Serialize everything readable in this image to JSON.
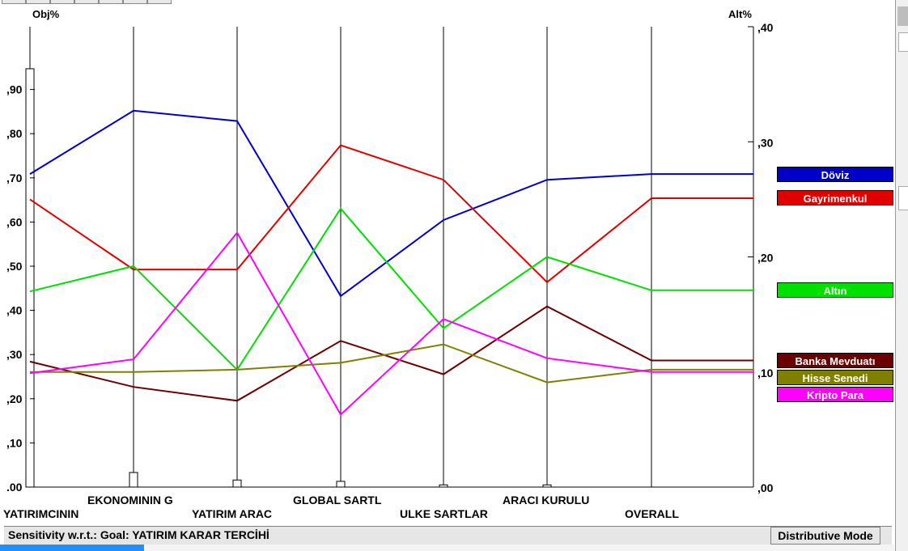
{
  "chart_data": {
    "type": "line",
    "left_axis_label": "Obj%",
    "right_axis_label": "Alt%",
    "left_ticks": [
      ".00",
      ",10",
      ",20",
      ",30",
      ",40",
      ",50",
      ",60",
      ",70",
      ",80",
      ",90"
    ],
    "left_ylim": [
      0,
      1.0
    ],
    "right_ticks": [
      ",00",
      ",10",
      ",20",
      ",30",
      ",40"
    ],
    "right_ylim": [
      0,
      0.4
    ],
    "categories": [
      "YATIRIMCININ",
      "EKONOMININ G",
      "YATIRIM ARAC",
      "GLOBAL SARTL",
      "ULKE SARTLAR",
      "ARACI KURULU",
      "OVERALL"
    ],
    "objective_weights": [
      0.947,
      0.033,
      0.016,
      0.013,
      0.005,
      0.005
    ],
    "series": [
      {
        "name": "Döviz",
        "color": "#0000c8",
        "values": [
          0.272,
          0.327,
          0.318,
          0.166,
          0.232,
          0.267,
          0.272
        ]
      },
      {
        "name": "Gayrimenkul",
        "color": "#e00000",
        "values": [
          0.25,
          0.189,
          0.189,
          0.297,
          0.267,
          0.178,
          0.251
        ]
      },
      {
        "name": "Altın",
        "color": "#00e000",
        "values": [
          0.17,
          0.192,
          0.102,
          0.242,
          0.138,
          0.2,
          0.171
        ]
      },
      {
        "name": "Banka Mevduatı",
        "color": "#6a0000",
        "values": [
          0.109,
          0.087,
          0.075,
          0.127,
          0.098,
          0.157,
          0.11
        ]
      },
      {
        "name": "Hisse Senedi",
        "color": "#808000",
        "values": [
          0.1,
          0.1,
          0.102,
          0.108,
          0.124,
          0.091,
          0.102
        ]
      },
      {
        "name": "Kripto Para",
        "color": "#ff00ff",
        "values": [
          0.099,
          0.111,
          0.221,
          0.063,
          0.146,
          0.112,
          0.1
        ]
      }
    ]
  },
  "status": {
    "sensitivity": "Sensitivity w.r.t.: Goal: YATIRIM KARAR TERCİHİ",
    "mode": "Distributive Mode"
  }
}
